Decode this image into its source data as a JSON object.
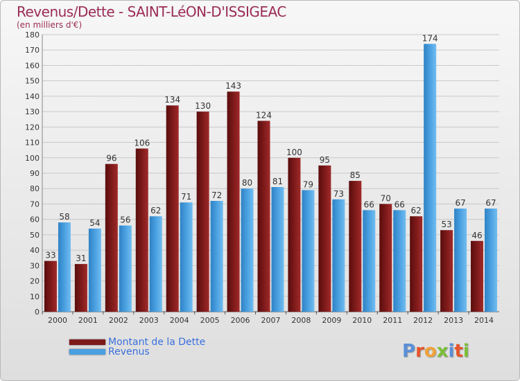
{
  "title": "Revenus/Dette - SAINT-LéON-D'ISSIGEAC",
  "subtitle": "(en milliers d'€)",
  "logo": {
    "text": "Proxiti",
    "letter_colors": [
      "#5a8fd8",
      "#e8542b",
      "#f0a23a",
      "#7bbf3a",
      "#5a8fd8",
      "#e8542b",
      "#7bbf3a"
    ]
  },
  "colors": {
    "dette": "#7d1a1a",
    "revenus": "#4aa0e0",
    "grid": "#c8c8c8",
    "title": "#9b2b55",
    "legend_text": "#3a6fdc"
  },
  "chart_data": {
    "type": "bar",
    "categories": [
      "2000",
      "2001",
      "2002",
      "2003",
      "2004",
      "2005",
      "2006",
      "2007",
      "2008",
      "2009",
      "2010",
      "2011",
      "2012",
      "2013",
      "2014"
    ],
    "series": [
      {
        "name": "Montant de la Dette",
        "values": [
          33,
          31,
          96,
          106,
          134,
          130,
          143,
          124,
          100,
          95,
          85,
          70,
          62,
          53,
          46
        ]
      },
      {
        "name": "Revenus",
        "values": [
          58,
          54,
          56,
          62,
          71,
          72,
          80,
          81,
          79,
          73,
          66,
          66,
          174,
          67,
          67
        ]
      }
    ],
    "ylim": [
      0,
      180
    ],
    "yticks": [
      0,
      10,
      20,
      30,
      40,
      50,
      60,
      70,
      80,
      90,
      100,
      110,
      120,
      130,
      140,
      150,
      160,
      170,
      180
    ],
    "grid": true,
    "legend_position": "bottom-left"
  }
}
